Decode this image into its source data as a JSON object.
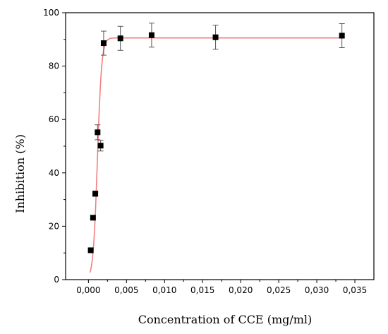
{
  "chart_data": {
    "type": "scatter",
    "title": "",
    "xlabel": "Concentration of CCE (mg/ml)",
    "ylabel": "Inhibition (%)",
    "xlim": [
      -0.003,
      0.0375
    ],
    "ylim": [
      0,
      100
    ],
    "x_ticks": [
      0.0,
      0.005,
      0.01,
      0.015,
      0.02,
      0.025,
      0.03,
      0.035
    ],
    "x_tick_labels": [
      "0,000",
      "0,005",
      "0,010",
      "0,015",
      "0,020",
      "0,025",
      "0,030",
      "0,035"
    ],
    "y_ticks": [
      0,
      20,
      40,
      60,
      80,
      100
    ],
    "y_tick_labels": [
      "0",
      "20",
      "40",
      "60",
      "80",
      "100"
    ],
    "grid": false,
    "series": [
      {
        "marker_color": "#000000",
        "fit_color": "#f08080",
        "points": [
          {
            "x": 0.0003,
            "y": 11.0,
            "err": 0
          },
          {
            "x": 0.0006,
            "y": 23.2,
            "err": 0
          },
          {
            "x": 0.0009,
            "y": 32.2,
            "err": 1.0
          },
          {
            "x": 0.0012,
            "y": 55.2,
            "err": 2.8
          },
          {
            "x": 0.0016,
            "y": 50.2,
            "err": 2.0
          },
          {
            "x": 0.002,
            "y": 88.6,
            "err": 4.5
          },
          {
            "x": 0.0042,
            "y": 90.4,
            "err": 4.5
          },
          {
            "x": 0.0083,
            "y": 91.6,
            "err": 4.5
          },
          {
            "x": 0.0167,
            "y": 90.8,
            "err": 4.5
          },
          {
            "x": 0.0333,
            "y": 91.4,
            "err": 4.5
          }
        ]
      }
    ]
  }
}
